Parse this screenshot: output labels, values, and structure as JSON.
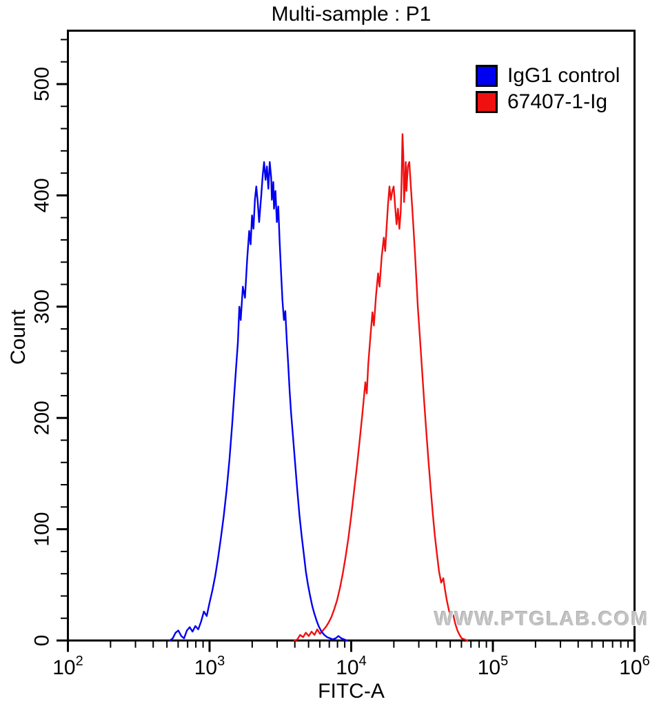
{
  "title": "Multi-sample : P1",
  "watermark": "WWW.PTGLAB.COM",
  "chart_data": {
    "type": "line",
    "subtype": "flow-cytometry-histogram",
    "title": "Multi-sample : P1",
    "xlabel": "FITC-A",
    "ylabel": "Count",
    "x_scale": "log10",
    "x_domain_log10": [
      2,
      6
    ],
    "x_tick_exponents": [
      2,
      3,
      4,
      5,
      6
    ],
    "x_tick_base": "10",
    "ylim": [
      0,
      548
    ],
    "y_major_ticks": [
      0,
      100,
      200,
      300,
      400,
      500
    ],
    "y_minor_step": 20,
    "grid": "off",
    "legend_position": "top-right-inside",
    "frame_color": "#000000",
    "series": [
      {
        "name": "IgG1 control",
        "color": "#0000f0",
        "peak_x_approx": 2600,
        "peak_count_approx": 430,
        "points": [
          [
            2.72,
            0
          ],
          [
            2.74,
            2
          ],
          [
            2.76,
            7
          ],
          [
            2.78,
            9
          ],
          [
            2.8,
            4
          ],
          [
            2.82,
            2
          ],
          [
            2.84,
            9
          ],
          [
            2.86,
            12
          ],
          [
            2.88,
            8
          ],
          [
            2.9,
            13
          ],
          [
            2.92,
            10
          ],
          [
            2.94,
            17
          ],
          [
            2.96,
            26
          ],
          [
            2.98,
            22
          ],
          [
            3.0,
            34
          ],
          [
            3.02,
            45
          ],
          [
            3.04,
            58
          ],
          [
            3.06,
            74
          ],
          [
            3.08,
            92
          ],
          [
            3.1,
            112
          ],
          [
            3.12,
            135
          ],
          [
            3.14,
            162
          ],
          [
            3.16,
            195
          ],
          [
            3.18,
            232
          ],
          [
            3.2,
            268
          ],
          [
            3.21,
            300
          ],
          [
            3.22,
            288
          ],
          [
            3.235,
            318
          ],
          [
            3.25,
            308
          ],
          [
            3.265,
            342
          ],
          [
            3.28,
            368
          ],
          [
            3.29,
            356
          ],
          [
            3.3,
            382
          ],
          [
            3.31,
            370
          ],
          [
            3.32,
            396
          ],
          [
            3.33,
            408
          ],
          [
            3.34,
            394
          ],
          [
            3.35,
            376
          ],
          [
            3.365,
            400
          ],
          [
            3.375,
            418
          ],
          [
            3.385,
            430
          ],
          [
            3.395,
            414
          ],
          [
            3.405,
            426
          ],
          [
            3.415,
            406
          ],
          [
            3.425,
            430
          ],
          [
            3.435,
            416
          ],
          [
            3.44,
            396
          ],
          [
            3.45,
            412
          ],
          [
            3.455,
            388
          ],
          [
            3.465,
            404
          ],
          [
            3.475,
            376
          ],
          [
            3.485,
            390
          ],
          [
            3.495,
            358
          ],
          [
            3.505,
            330
          ],
          [
            3.515,
            305
          ],
          [
            3.525,
            288
          ],
          [
            3.535,
            296
          ],
          [
            3.545,
            270
          ],
          [
            3.555,
            248
          ],
          [
            3.565,
            225
          ],
          [
            3.575,
            205
          ],
          [
            3.59,
            182
          ],
          [
            3.605,
            158
          ],
          [
            3.62,
            134
          ],
          [
            3.635,
            112
          ],
          [
            3.65,
            94
          ],
          [
            3.665,
            78
          ],
          [
            3.68,
            62
          ],
          [
            3.695,
            50
          ],
          [
            3.71,
            40
          ],
          [
            3.725,
            31
          ],
          [
            3.74,
            24
          ],
          [
            3.755,
            18
          ],
          [
            3.77,
            13
          ],
          [
            3.79,
            8
          ],
          [
            3.81,
            5
          ],
          [
            3.83,
            3
          ],
          [
            3.85,
            2
          ],
          [
            3.87,
            1
          ],
          [
            3.89,
            2
          ],
          [
            3.91,
            4
          ],
          [
            3.93,
            2
          ],
          [
            3.95,
            1
          ],
          [
            3.97,
            0
          ]
        ]
      },
      {
        "name": "67407-1-Ig",
        "color": "#f01010",
        "peak_x_approx": 23000,
        "peak_count_approx": 455,
        "points": [
          [
            3.6,
            0
          ],
          [
            3.62,
            1
          ],
          [
            3.64,
            5
          ],
          [
            3.66,
            3
          ],
          [
            3.68,
            7
          ],
          [
            3.7,
            4
          ],
          [
            3.72,
            8
          ],
          [
            3.74,
            5
          ],
          [
            3.76,
            10
          ],
          [
            3.78,
            6
          ],
          [
            3.8,
            9
          ],
          [
            3.82,
            12
          ],
          [
            3.84,
            16
          ],
          [
            3.86,
            21
          ],
          [
            3.88,
            28
          ],
          [
            3.9,
            36
          ],
          [
            3.92,
            47
          ],
          [
            3.94,
            60
          ],
          [
            3.96,
            75
          ],
          [
            3.98,
            92
          ],
          [
            4.0,
            112
          ],
          [
            4.02,
            134
          ],
          [
            4.04,
            156
          ],
          [
            4.06,
            180
          ],
          [
            4.08,
            205
          ],
          [
            4.1,
            232
          ],
          [
            4.11,
            222
          ],
          [
            4.12,
            248
          ],
          [
            4.135,
            272
          ],
          [
            4.15,
            295
          ],
          [
            4.16,
            283
          ],
          [
            4.175,
            310
          ],
          [
            4.19,
            330
          ],
          [
            4.2,
            318
          ],
          [
            4.215,
            345
          ],
          [
            4.23,
            362
          ],
          [
            4.24,
            350
          ],
          [
            4.25,
            372
          ],
          [
            4.26,
            392
          ],
          [
            4.27,
            408
          ],
          [
            4.28,
            396
          ],
          [
            4.29,
            404
          ],
          [
            4.3,
            408
          ],
          [
            4.31,
            390
          ],
          [
            4.32,
            374
          ],
          [
            4.33,
            388
          ],
          [
            4.34,
            370
          ],
          [
            4.35,
            386
          ],
          [
            4.355,
            412
          ],
          [
            4.362,
            455
          ],
          [
            4.368,
            436
          ],
          [
            4.373,
            394
          ],
          [
            4.38,
            414
          ],
          [
            4.385,
            430
          ],
          [
            4.39,
            404
          ],
          [
            4.4,
            426
          ],
          [
            4.41,
            430
          ],
          [
            4.42,
            410
          ],
          [
            4.43,
            390
          ],
          [
            4.44,
            370
          ],
          [
            4.45,
            348
          ],
          [
            4.46,
            325
          ],
          [
            4.47,
            300
          ],
          [
            4.485,
            272
          ],
          [
            4.5,
            243
          ],
          [
            4.515,
            215
          ],
          [
            4.53,
            188
          ],
          [
            4.545,
            162
          ],
          [
            4.56,
            138
          ],
          [
            4.575,
            115
          ],
          [
            4.59,
            95
          ],
          [
            4.605,
            78
          ],
          [
            4.62,
            62
          ],
          [
            4.635,
            52
          ],
          [
            4.65,
            56
          ],
          [
            4.662,
            46
          ],
          [
            4.675,
            36
          ],
          [
            4.69,
            27
          ],
          [
            4.705,
            21
          ],
          [
            4.72,
            23
          ],
          [
            4.735,
            15
          ],
          [
            4.75,
            9
          ],
          [
            4.765,
            5
          ],
          [
            4.78,
            2
          ],
          [
            4.8,
            1
          ],
          [
            4.82,
            0
          ]
        ]
      }
    ]
  }
}
